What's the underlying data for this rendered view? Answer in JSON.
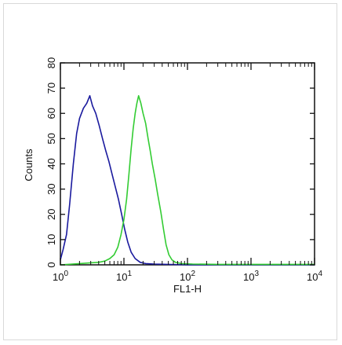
{
  "chart_data": {
    "type": "line",
    "title": "",
    "xlabel": "FL1-H",
    "ylabel": "Counts",
    "x_scale": "log",
    "xlim": [
      1,
      10000
    ],
    "ylim": [
      0,
      80
    ],
    "x_ticks": [
      {
        "value": 1,
        "base": "10",
        "exp": "0"
      },
      {
        "value": 10,
        "base": "10",
        "exp": "1"
      },
      {
        "value": 100,
        "base": "10",
        "exp": "2"
      },
      {
        "value": 1000,
        "base": "10",
        "exp": "3"
      },
      {
        "value": 10000,
        "base": "10",
        "exp": "4"
      }
    ],
    "y_ticks": [
      "0",
      "10",
      "20",
      "30",
      "40",
      "50",
      "60",
      "70",
      "80"
    ],
    "grid": false,
    "legend": "none",
    "series": [
      {
        "color": "#1a1a9e",
        "points": [
          [
            1.0,
            2
          ],
          [
            1.1,
            6
          ],
          [
            1.25,
            12
          ],
          [
            1.4,
            24
          ],
          [
            1.6,
            40
          ],
          [
            1.8,
            52
          ],
          [
            2.0,
            58
          ],
          [
            2.3,
            62
          ],
          [
            2.6,
            64
          ],
          [
            2.9,
            67
          ],
          [
            3.2,
            63
          ],
          [
            3.6,
            60
          ],
          [
            4.1,
            55
          ],
          [
            4.6,
            50
          ],
          [
            5.2,
            45
          ],
          [
            5.8,
            41
          ],
          [
            6.5,
            36
          ],
          [
            7.3,
            31
          ],
          [
            8.2,
            26
          ],
          [
            9.2,
            20
          ],
          [
            10.3,
            14
          ],
          [
            11.5,
            9
          ],
          [
            13,
            5
          ],
          [
            15,
            2.5
          ],
          [
            18,
            1
          ],
          [
            22,
            0.5
          ],
          [
            30,
            0.3
          ],
          [
            100,
            0
          ],
          [
            10000,
            0
          ]
        ]
      },
      {
        "color": "#33cc33",
        "points": [
          [
            1.0,
            0
          ],
          [
            2.0,
            0.5
          ],
          [
            3.0,
            0.8
          ],
          [
            4.0,
            1
          ],
          [
            5.0,
            1.5
          ],
          [
            6.0,
            2.5
          ],
          [
            7.0,
            4
          ],
          [
            8.0,
            7
          ],
          [
            9.0,
            12
          ],
          [
            10,
            18
          ],
          [
            11,
            26
          ],
          [
            12,
            36
          ],
          [
            13,
            46
          ],
          [
            14,
            54
          ],
          [
            15,
            60
          ],
          [
            16,
            64
          ],
          [
            17,
            67
          ],
          [
            18.5,
            64
          ],
          [
            20,
            60
          ],
          [
            22,
            56
          ],
          [
            24,
            50
          ],
          [
            26,
            45
          ],
          [
            28,
            40
          ],
          [
            31,
            34
          ],
          [
            34,
            28
          ],
          [
            38,
            21
          ],
          [
            42,
            14
          ],
          [
            46,
            8
          ],
          [
            51,
            4
          ],
          [
            57,
            2
          ],
          [
            65,
            1
          ],
          [
            80,
            0.5
          ],
          [
            120,
            0.3
          ],
          [
            300,
            0.2
          ],
          [
            10000,
            0.2
          ]
        ]
      }
    ]
  }
}
